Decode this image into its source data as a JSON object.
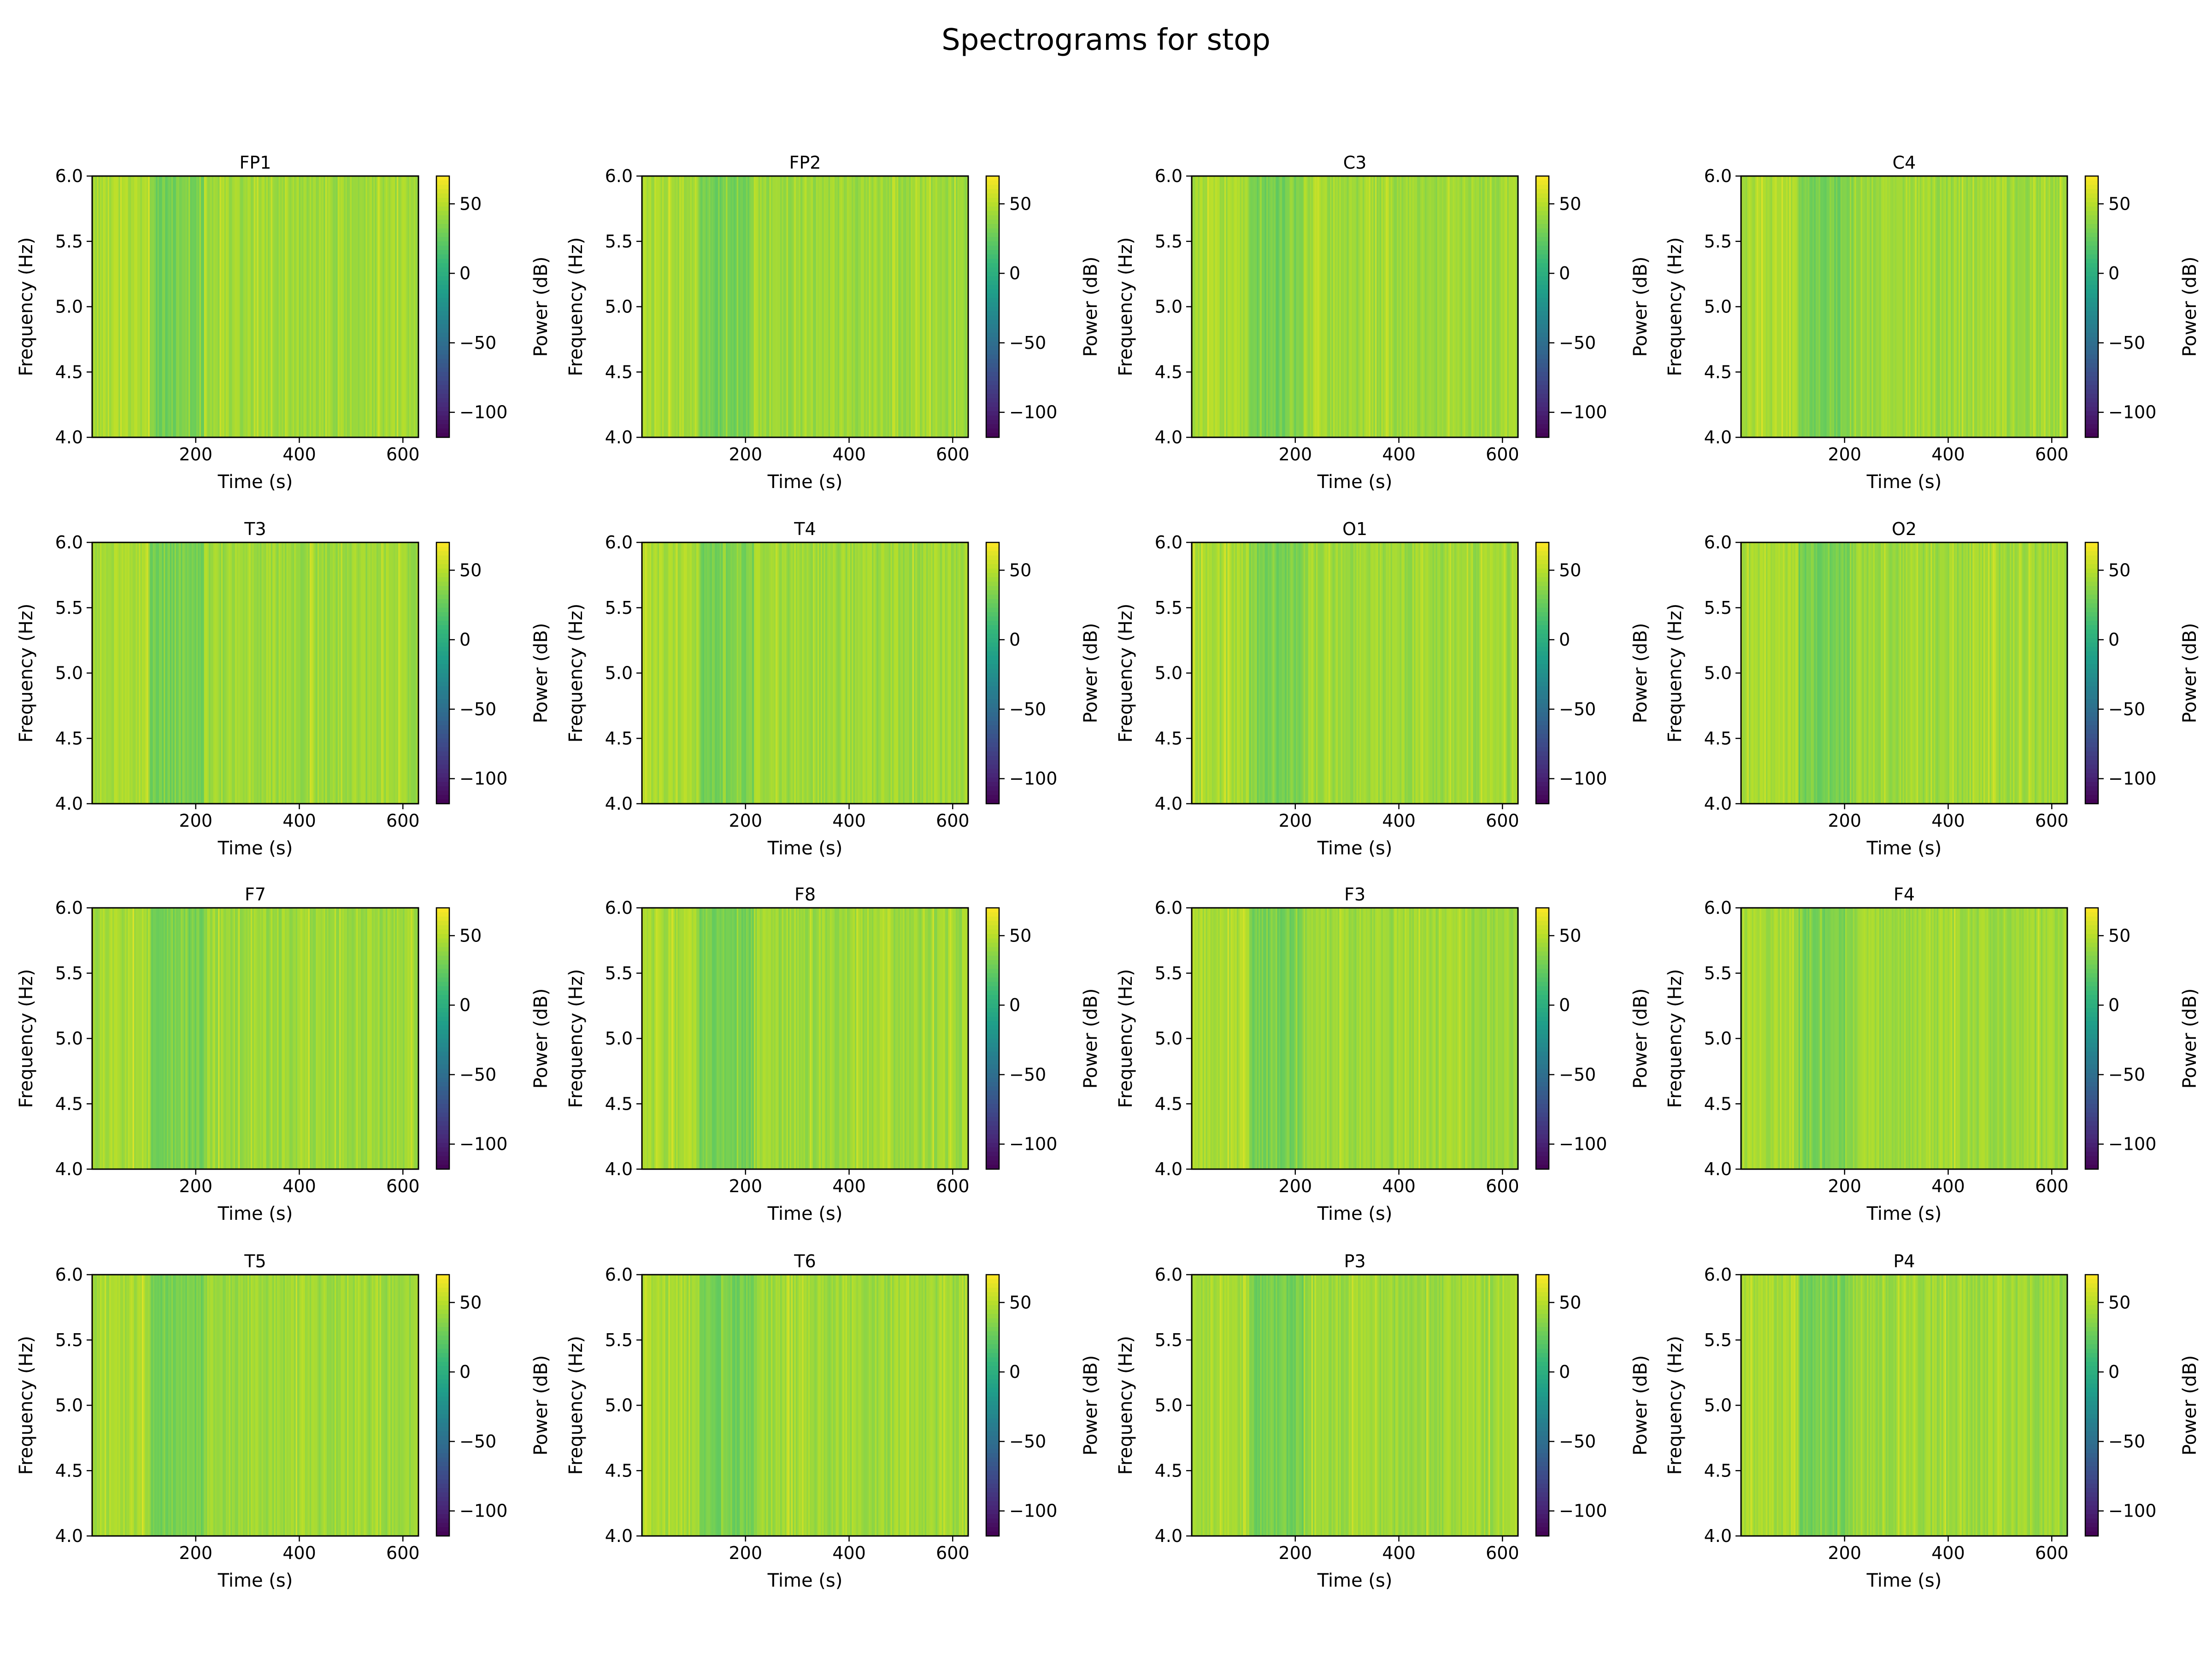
{
  "figure": {
    "title": "Spectrograms for stop"
  },
  "colormap": [
    "#440154",
    "#482878",
    "#3e4989",
    "#31688e",
    "#26828e",
    "#1f9e89",
    "#35b779",
    "#6ece58",
    "#b5de2b",
    "#fde725"
  ],
  "chart_data": {
    "type": "heatmap",
    "layout": "4x4 grid of spectrograms, each with its own colorbar",
    "xlabel": "Time (s)",
    "ylabel": "Frequency (Hz)",
    "colorbar_label": "Power (dB)",
    "xlim": [
      0,
      630
    ],
    "ylim": [
      4.0,
      6.0
    ],
    "x_ticks": [
      200,
      400,
      600
    ],
    "y_ticks": [
      "4.0",
      "4.5",
      "5.0",
      "5.5",
      "6.0"
    ],
    "clim": [
      -118,
      70
    ],
    "colorbar_ticks": [
      50,
      0,
      -50,
      -100
    ],
    "channels": [
      "FP1",
      "FP2",
      "C3",
      "C4",
      "T3",
      "T4",
      "O1",
      "O2",
      "F7",
      "F8",
      "F3",
      "F4",
      "T5",
      "T6",
      "P3",
      "P4"
    ],
    "power_profile_note_free": true,
    "typical_power_db": [
      {
        "time_range_s": [
          0,
          110
        ],
        "power_db": 45
      },
      {
        "time_range_s": [
          110,
          215
        ],
        "power_db": 30
      },
      {
        "time_range_s": [
          215,
          630
        ],
        "power_db": 42
      }
    ]
  }
}
